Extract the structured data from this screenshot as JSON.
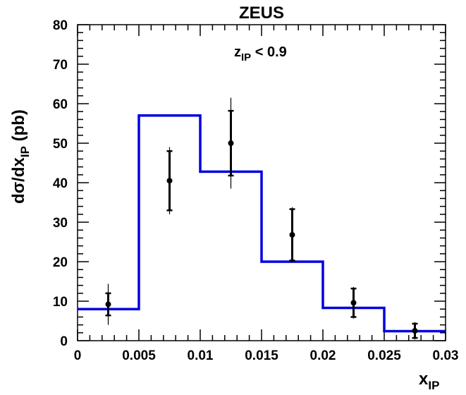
{
  "chart_data": {
    "type": "line",
    "title": "ZEUS",
    "xlabel": "x_IP",
    "ylabel": "dσ/dx_IP (pb)",
    "xlim": [
      0,
      0.03
    ],
    "ylim": [
      0,
      80
    ],
    "x_ticks": [
      "0",
      "0.005",
      "0.01",
      "0.015",
      "0.02",
      "0.025",
      "0.03"
    ],
    "y_ticks": [
      "0",
      "10",
      "20",
      "30",
      "40",
      "50",
      "60",
      "70",
      "80"
    ],
    "annotation": "z_IP < 0.9",
    "grid": false,
    "colors": {
      "histogram": "#0000e0",
      "points": "#000000"
    },
    "series": [
      {
        "type": "points_with_errors",
        "x": [
          0.0025,
          0.0075,
          0.0125,
          0.0175,
          0.0225,
          0.0275
        ],
        "y": [
          9.2,
          40.5,
          50.0,
          26.8,
          9.6,
          2.5
        ],
        "stat_err": [
          2.8,
          7.5,
          8.2,
          6.5,
          3.6,
          1.8
        ],
        "total_err": [
          5.2,
          8.5,
          11.5,
          7.0,
          4.0,
          2.2
        ]
      },
      {
        "type": "step_histogram",
        "bin_edges": [
          0,
          0.005,
          0.01,
          0.015,
          0.02,
          0.025,
          0.03
        ],
        "values": [
          8.0,
          57.0,
          42.8,
          20.0,
          8.3,
          2.4
        ]
      }
    ]
  }
}
